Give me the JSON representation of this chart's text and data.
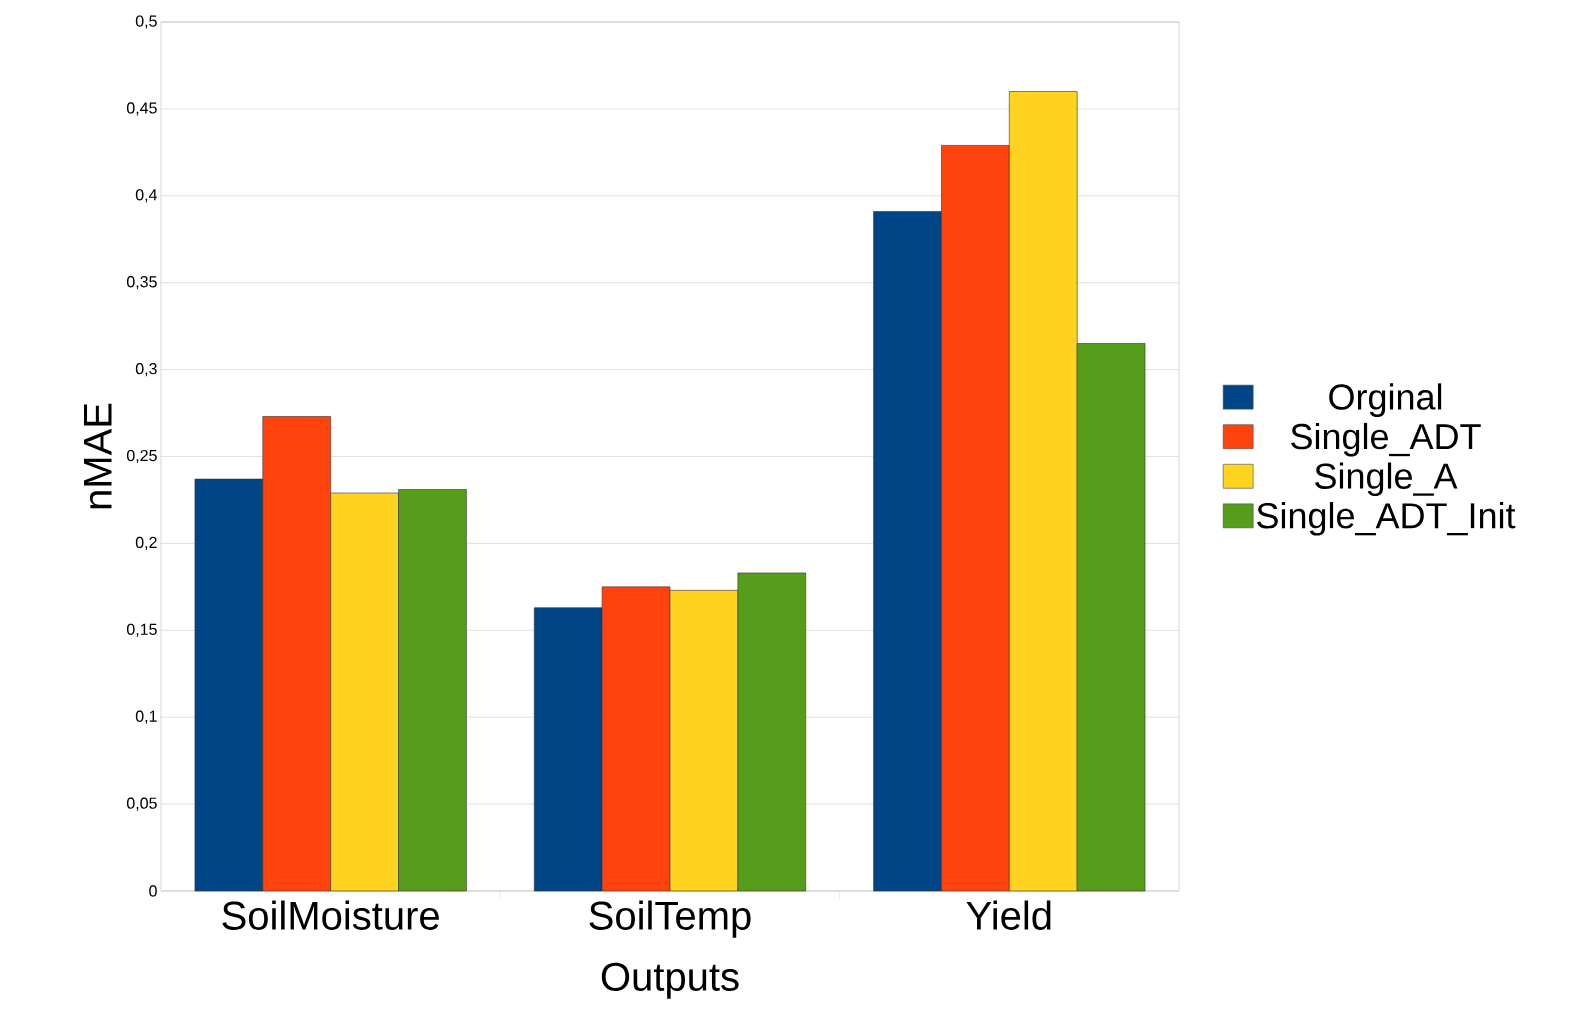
{
  "chart_data": {
    "type": "bar",
    "xlabel": "Outputs",
    "ylabel": "nMAE",
    "categories": [
      "SoilMoisture",
      "SoilTemp",
      "Yield"
    ],
    "series": [
      {
        "name": "Orginal",
        "color": "#004586",
        "values": [
          0.237,
          0.163,
          0.391
        ]
      },
      {
        "name": "Single_ADT",
        "color": "#ff420e",
        "values": [
          0.273,
          0.175,
          0.429
        ]
      },
      {
        "name": "Single_A",
        "color": "#ffd320",
        "values": [
          0.229,
          0.173,
          0.46
        ]
      },
      {
        "name": "Single_ADT_Init",
        "color": "#579d1c",
        "values": [
          0.231,
          0.183,
          0.315
        ]
      }
    ],
    "ylim": [
      0,
      0.5
    ],
    "yticks": [
      0,
      {
        "value": 0.05,
        "label": "0,05"
      },
      {
        "value": 0.1,
        "label": "0,1"
      },
      {
        "value": 0.15,
        "label": "0,15"
      },
      {
        "value": 0.2,
        "label": "0,2"
      },
      {
        "value": 0.25,
        "label": "0,25"
      },
      {
        "value": 0.3,
        "label": "0,3"
      },
      {
        "value": 0.35,
        "label": "0,35"
      },
      {
        "value": 0.4,
        "label": "0,4"
      },
      {
        "value": 0.45,
        "label": "0,45"
      },
      {
        "value": 0.5,
        "label": "0,5"
      }
    ],
    "grid": "y",
    "legend": "right"
  }
}
